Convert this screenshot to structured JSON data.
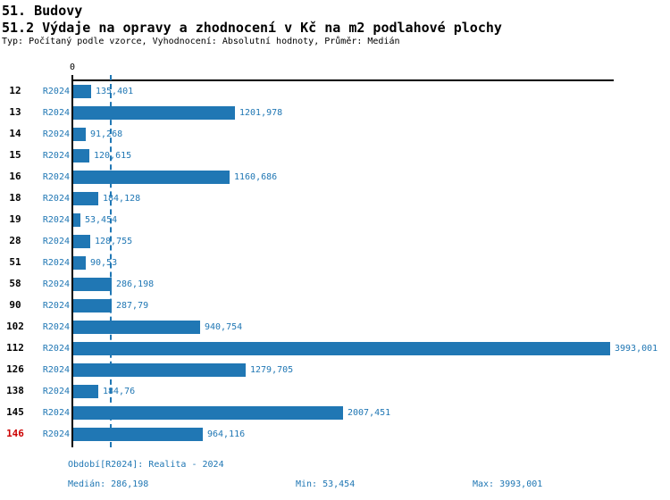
{
  "header": {
    "title1": "51. Budovy",
    "title2": "51.2 Výdaje na opravy a zhodnocení v Kč na m2 podlahové plochy",
    "subtitle": "Typ: Počítaný podle vzorce, Vyhodnocení: Absolutní hodnoty, Průměr: Medián"
  },
  "chart_data": {
    "type": "bar",
    "orientation": "horizontal",
    "title": "51.2 Výdaje na opravy a zhodnocení v Kč na m2 podlahové plochy",
    "series_label": "R2024",
    "categories": [
      "12",
      "13",
      "14",
      "15",
      "16",
      "18",
      "19",
      "28",
      "51",
      "58",
      "90",
      "102",
      "112",
      "126",
      "138",
      "145",
      "146"
    ],
    "values": [
      135.401,
      1201.978,
      91.268,
      120.615,
      1160.686,
      184.128,
      53.454,
      128.755,
      90.53,
      286.198,
      287.79,
      940.754,
      3993.001,
      1279.705,
      184.76,
      2007.451,
      964.116
    ],
    "value_labels": [
      "135,401",
      "1201,978",
      "91,268",
      "120,615",
      "1160,686",
      "184,128",
      "53,454",
      "128,755",
      "90,53",
      "286,198",
      "287,79",
      "940,754",
      "3993,001",
      "1279,705",
      "184,76",
      "2007,451",
      "964,116"
    ],
    "xlim": [
      0,
      3993.001
    ],
    "axis_zero_label": "0",
    "median_value": 286.198,
    "highlight_category": "146",
    "grid": "median-dashed-line-only",
    "legend_position": "none",
    "colors": {
      "bar": "#2077b4",
      "value_text": "#2077b4",
      "series_text": "#2077b4",
      "category_text": "#000000",
      "highlight_category_text": "#cc0000",
      "axis": "#000000",
      "median_line": "#2077b4"
    }
  },
  "footer": {
    "period": "Období[R2024]: Realita - 2024",
    "median": "Medián: 286,198",
    "min": "Min: 53,454",
    "max": "Max: 3993,001"
  }
}
